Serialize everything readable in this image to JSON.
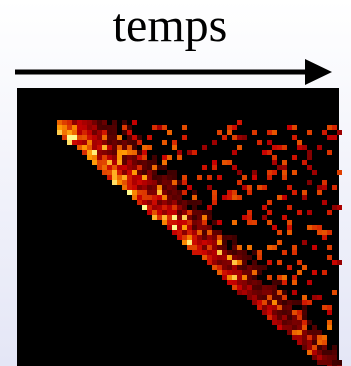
{
  "figure": {
    "axis_label": "temps"
  }
}
